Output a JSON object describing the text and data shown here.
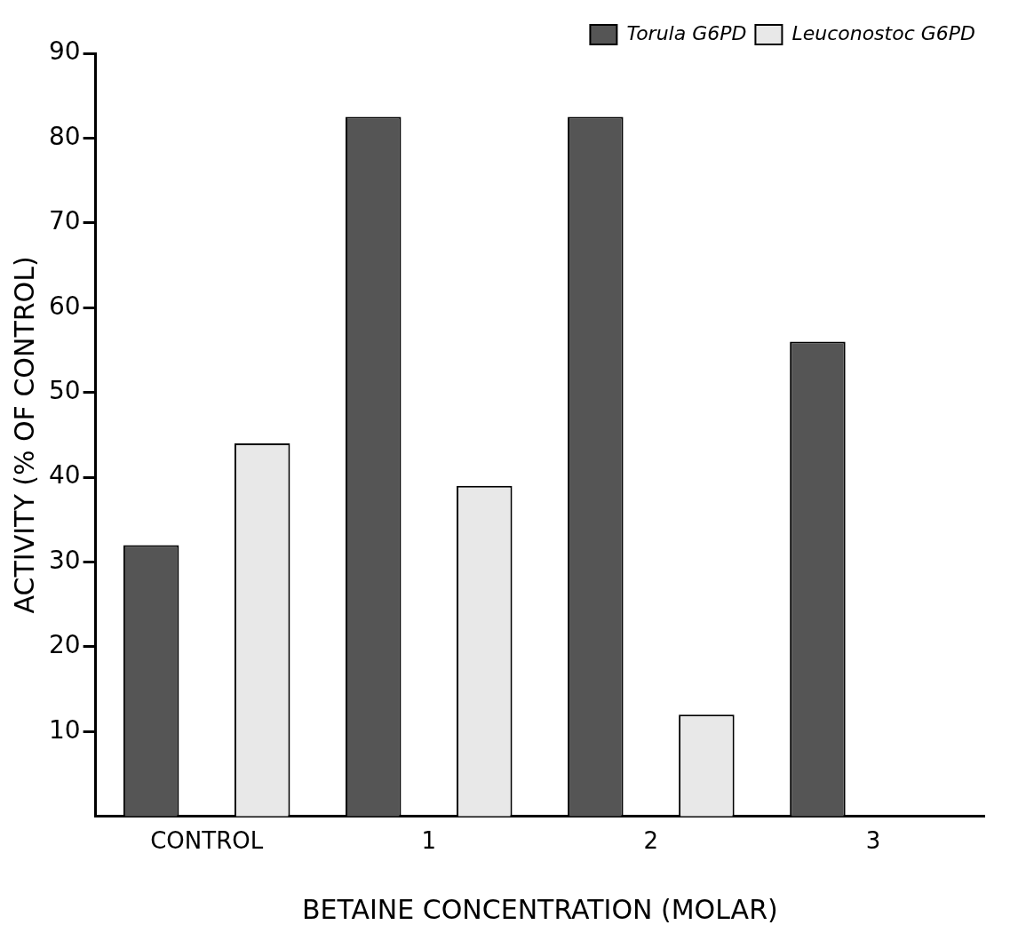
{
  "chart_data": {
    "type": "bar",
    "xlabel": "BETAINE CONCENTRATION (MOLAR)",
    "ylabel": "ACTIVITY (% OF CONTROL)",
    "categories": [
      "CONTROL",
      "1",
      "2",
      "3"
    ],
    "series": [
      {
        "name": "Torula G6PD",
        "color": "#555555",
        "values": [
          32,
          82.5,
          82.5,
          56
        ]
      },
      {
        "name": "Leuconostoc G6PD",
        "color": "#e8e8e8",
        "values": [
          44,
          39,
          12,
          null
        ]
      }
    ],
    "ylim": [
      0,
      90
    ],
    "yticks": [
      10,
      20,
      30,
      40,
      50,
      60,
      70,
      80,
      90
    ],
    "grid": false,
    "legend": "top right"
  }
}
